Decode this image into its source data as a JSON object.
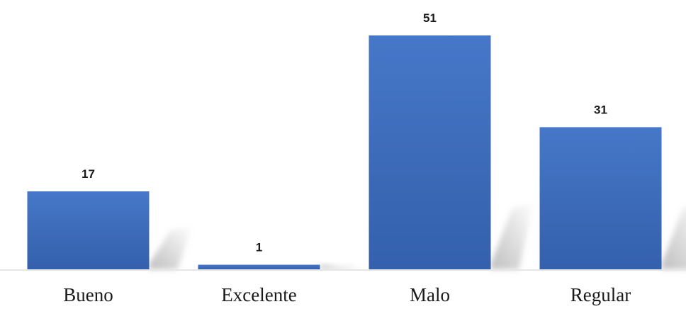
{
  "chart_data": {
    "type": "bar",
    "categories": [
      "Bueno",
      "Excelente",
      "Malo",
      "Regular"
    ],
    "values": [
      17,
      1,
      51,
      31
    ],
    "data_labels": [
      "17",
      "1",
      "51",
      "31"
    ],
    "title": "",
    "xlabel": "",
    "ylabel": "",
    "ylim": [
      0,
      51
    ],
    "grid": false,
    "legend": "none"
  },
  "colors": {
    "bar_top": "#4677c8",
    "bar_bottom": "#3460ac",
    "shadow": "#b8b8b8",
    "axis": "#e6e6e6"
  }
}
